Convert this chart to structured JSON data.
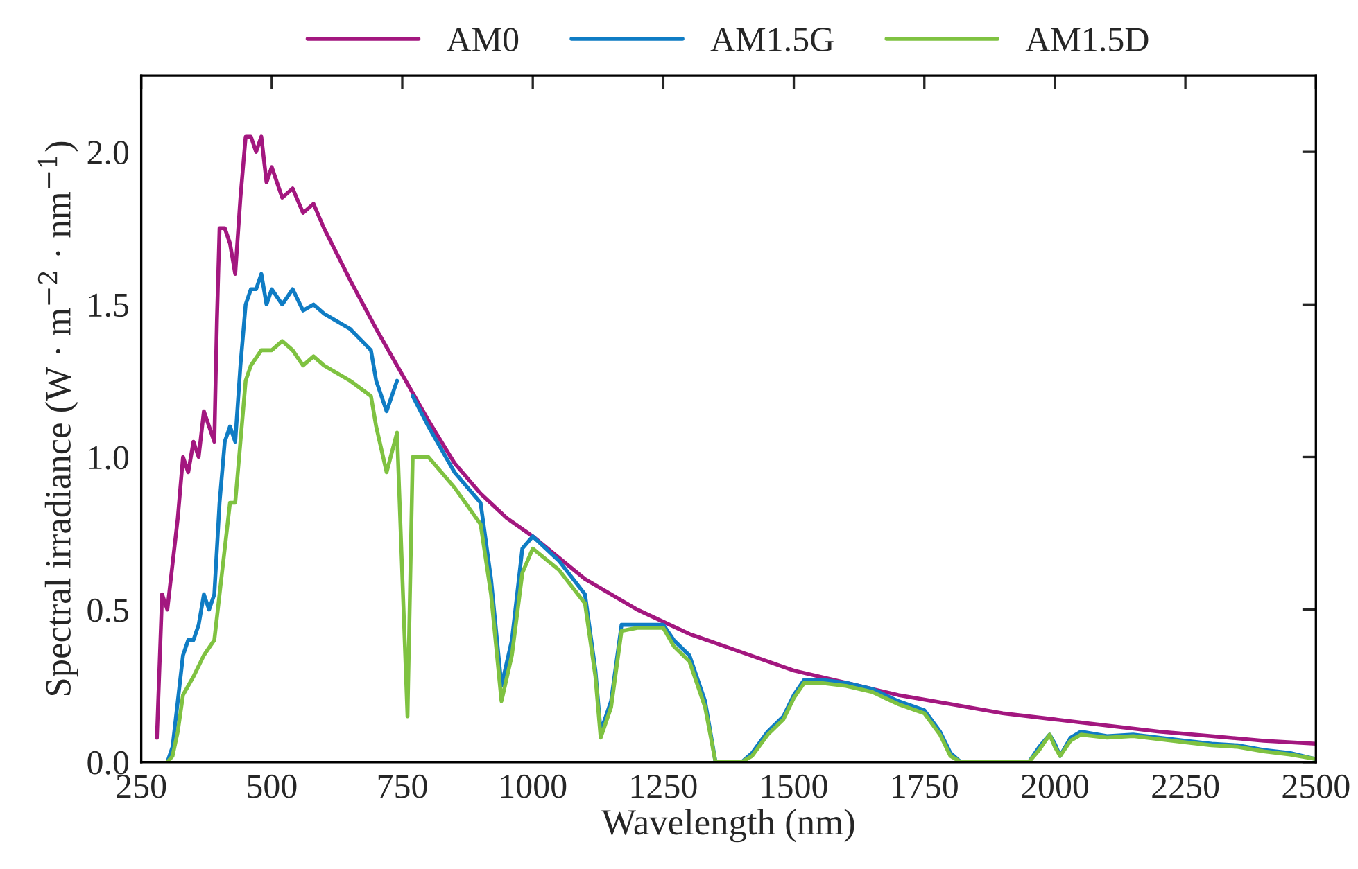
{
  "chart_data": {
    "type": "line",
    "xlabel": "Wavelength (nm)",
    "ylabel": "Spectral irradiance (W · m$^{−2}$ · nm$^{−1}$)",
    "xlim": [
      250,
      2500
    ],
    "xticks": [
      250,
      500,
      750,
      1000,
      1250,
      1500,
      1750,
      2000,
      2250,
      2500
    ],
    "ylim": [
      0,
      2.25
    ],
    "yticks": [
      {
        "value": 0,
        "label": "0.0"
      },
      0.5,
      {
        "value": 1,
        "label": "1.0"
      },
      1.5,
      {
        "value": 2,
        "label": "2.0"
      }
    ],
    "grid": false,
    "legend": "top",
    "marker": "none",
    "line_style": "solid",
    "series": [
      {
        "name": "AM0",
        "color": "#a3177f",
        "x": [
          280,
          290,
          300,
          310,
          320,
          330,
          340,
          350,
          360,
          370,
          380,
          390,
          395,
          400,
          410,
          420,
          430,
          440,
          450,
          460,
          470,
          480,
          490,
          500,
          520,
          540,
          560,
          580,
          600,
          650,
          700,
          750,
          800,
          850,
          900,
          950,
          1000,
          1100,
          1200,
          1300,
          1400,
          1500,
          1600,
          1700,
          1800,
          1900,
          2000,
          2100,
          2200,
          2300,
          2400,
          2500
        ],
        "values": [
          0.08,
          0.55,
          0.5,
          0.65,
          0.8,
          1.0,
          0.95,
          1.05,
          1.0,
          1.15,
          1.1,
          1.05,
          1.45,
          1.75,
          1.75,
          1.7,
          1.6,
          1.85,
          2.05,
          2.05,
          2.0,
          2.05,
          1.9,
          1.95,
          1.85,
          1.88,
          1.8,
          1.83,
          1.75,
          1.58,
          1.42,
          1.27,
          1.12,
          0.98,
          0.88,
          0.8,
          0.74,
          0.6,
          0.5,
          0.42,
          0.36,
          0.3,
          0.26,
          0.22,
          0.19,
          0.16,
          0.14,
          0.12,
          0.1,
          0.085,
          0.07,
          0.06
        ]
      },
      {
        "name": "AM1.5G",
        "color": "#0f7cc4",
        "x": [
          300,
          310,
          320,
          330,
          340,
          350,
          360,
          370,
          380,
          390,
          400,
          410,
          420,
          430,
          440,
          450,
          460,
          470,
          480,
          490,
          500,
          520,
          540,
          560,
          580,
          600,
          650,
          690,
          700,
          720,
          740,
          760,
          770,
          800,
          850,
          900,
          920,
          940,
          960,
          980,
          1000,
          1050,
          1100,
          1120,
          1130,
          1150,
          1170,
          1200,
          1250,
          1270,
          1300,
          1330,
          1350,
          1400,
          1420,
          1450,
          1480,
          1500,
          1520,
          1550,
          1600,
          1650,
          1700,
          1750,
          1780,
          1800,
          1820,
          1950,
          1970,
          1990,
          2000,
          2010,
          2030,
          2050,
          2100,
          2150,
          2200,
          2250,
          2300,
          2350,
          2400,
          2450,
          2500
        ],
        "values": [
          0,
          0.05,
          0.2,
          0.35,
          0.4,
          0.4,
          0.45,
          0.55,
          0.5,
          0.55,
          0.85,
          1.05,
          1.1,
          1.05,
          1.3,
          1.5,
          1.55,
          1.55,
          1.6,
          1.5,
          1.55,
          1.5,
          1.55,
          1.48,
          1.5,
          1.47,
          1.42,
          1.35,
          1.25,
          1.15,
          1.25,
          null,
          1.2,
          1.1,
          0.95,
          0.85,
          0.6,
          0.25,
          0.4,
          0.7,
          0.74,
          0.66,
          0.55,
          0.3,
          0.1,
          0.2,
          0.45,
          0.45,
          0.45,
          0.4,
          0.35,
          0.2,
          0,
          0,
          0.03,
          0.1,
          0.15,
          0.22,
          0.27,
          0.27,
          0.26,
          0.24,
          0.2,
          0.17,
          0.1,
          0.03,
          0,
          0,
          0.05,
          0.09,
          0.06,
          0.02,
          0.08,
          0.1,
          0.085,
          0.09,
          0.08,
          0.07,
          0.06,
          0.055,
          0.04,
          0.03,
          0.01
        ]
      },
      {
        "name": "AM1.5D",
        "color": "#7fc241",
        "x": [
          300,
          310,
          320,
          330,
          350,
          370,
          390,
          400,
          410,
          420,
          430,
          440,
          450,
          460,
          480,
          500,
          520,
          540,
          560,
          580,
          600,
          650,
          690,
          700,
          720,
          740,
          760,
          770,
          800,
          850,
          900,
          920,
          940,
          960,
          980,
          1000,
          1050,
          1100,
          1120,
          1130,
          1150,
          1170,
          1200,
          1250,
          1270,
          1300,
          1330,
          1350,
          1400,
          1420,
          1450,
          1480,
          1500,
          1520,
          1550,
          1600,
          1650,
          1700,
          1750,
          1780,
          1800,
          1820,
          1950,
          1970,
          1990,
          2000,
          2010,
          2030,
          2050,
          2100,
          2150,
          2200,
          2250,
          2300,
          2350,
          2400,
          2450,
          2500
        ],
        "values": [
          0,
          0.02,
          0.1,
          0.22,
          0.28,
          0.35,
          0.4,
          0.55,
          0.7,
          0.85,
          0.85,
          1.05,
          1.25,
          1.3,
          1.35,
          1.35,
          1.38,
          1.35,
          1.3,
          1.33,
          1.3,
          1.25,
          1.2,
          1.1,
          0.95,
          1.08,
          0.15,
          1.0,
          1.0,
          0.9,
          0.78,
          0.55,
          0.2,
          0.35,
          0.62,
          0.7,
          0.63,
          0.52,
          0.28,
          0.08,
          0.18,
          0.43,
          0.44,
          0.44,
          0.38,
          0.33,
          0.18,
          0,
          0,
          0.02,
          0.09,
          0.14,
          0.21,
          0.26,
          0.26,
          0.25,
          0.23,
          0.19,
          0.16,
          0.09,
          0.02,
          0,
          0,
          0.04,
          0.09,
          0.05,
          0.02,
          0.07,
          0.09,
          0.08,
          0.085,
          0.075,
          0.065,
          0.055,
          0.05,
          0.035,
          0.025,
          0.01
        ]
      }
    ]
  }
}
